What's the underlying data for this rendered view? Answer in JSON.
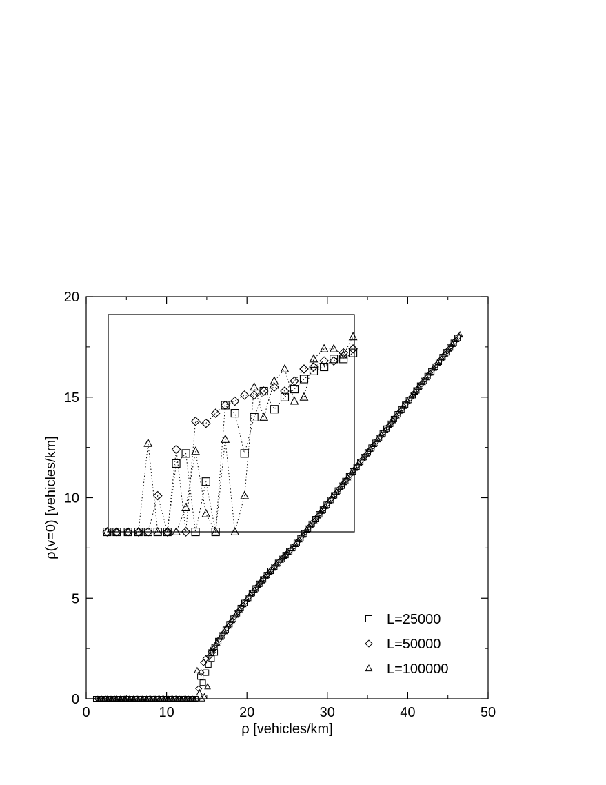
{
  "chart_data": {
    "type": "scatter",
    "xlabel": "ρ [vehicles/km]",
    "ylabel": "ρ(v=0) [vehicles/km]",
    "xlim": [
      0,
      50
    ],
    "ylim": [
      0,
      20
    ],
    "xticks": [
      0,
      10,
      20,
      30,
      40,
      50
    ],
    "yticks": [
      0,
      5,
      10,
      15,
      20
    ],
    "xtick_labels": [
      "0",
      "10",
      "20",
      "30",
      "40",
      "50"
    ],
    "ytick_labels": [
      "0",
      "5",
      "10",
      "15",
      "20"
    ],
    "grid": false,
    "legend_position": "bottom-right",
    "main": {
      "series": [
        {
          "name": "L=25000",
          "marker": "square"
        },
        {
          "name": "L=50000",
          "marker": "diamond"
        },
        {
          "name": "L=100000",
          "marker": "triangle"
        }
      ],
      "flat_region": {
        "x_start": 1.2,
        "x_end": 13.8,
        "y": 0.0
      },
      "transition_points": [
        {
          "series": "L=25000",
          "points": [
            [
              14.2,
              1.1
            ],
            [
              14.5,
              0.8
            ],
            [
              14.9,
              1.3
            ],
            [
              15.2,
              1.7
            ],
            [
              15.6,
              2.0
            ],
            [
              16.0,
              2.3
            ]
          ]
        },
        {
          "series": "L=50000",
          "points": [
            [
              14.0,
              0.5
            ],
            [
              14.3,
              1.3
            ],
            [
              14.6,
              1.8
            ],
            [
              14.9,
              2.0
            ],
            [
              15.3,
              2.1
            ],
            [
              15.7,
              2.3
            ]
          ]
        },
        {
          "series": "L=100000",
          "points": [
            [
              13.8,
              1.4
            ],
            [
              14.1,
              0.3
            ],
            [
              14.4,
              0.0
            ],
            [
              14.7,
              0.1
            ],
            [
              15.1,
              0.6
            ],
            [
              15.5,
              2.4
            ]
          ]
        }
      ],
      "linear_branch": {
        "x_start": 15.5,
        "y_start": 2.3,
        "x_end": 46.5,
        "y_end": 18.1
      }
    },
    "inset": {
      "series": [
        {
          "name": "L=25000",
          "marker": "square",
          "x": [
            2.6,
            3.8,
            5.2,
            6.5,
            7.7,
            8.9,
            10.1,
            11.2,
            12.4,
            13.6,
            14.9,
            16.1,
            17.3,
            18.5,
            19.7,
            20.9,
            22.1,
            23.4,
            24.7,
            25.9,
            27.1,
            28.3,
            29.6,
            30.8,
            32.0,
            33.2
          ],
          "y": [
            8.3,
            8.3,
            8.3,
            8.3,
            8.3,
            8.3,
            8.3,
            11.7,
            12.2,
            8.3,
            10.8,
            8.3,
            14.6,
            14.2,
            12.2,
            14.0,
            15.3,
            14.4,
            15.0,
            15.4,
            15.9,
            16.3,
            16.5,
            16.9,
            16.9,
            17.2
          ]
        },
        {
          "name": "L=50000",
          "marker": "diamond",
          "x": [
            2.6,
            3.8,
            5.2,
            6.5,
            7.7,
            8.9,
            10.1,
            11.2,
            12.4,
            13.6,
            14.9,
            16.1,
            17.3,
            18.5,
            19.7,
            20.9,
            22.1,
            23.4,
            24.7,
            25.9,
            27.1,
            28.3,
            29.6,
            30.8,
            32.0,
            33.2
          ],
          "y": [
            8.3,
            8.3,
            8.3,
            8.3,
            8.3,
            10.1,
            8.3,
            12.4,
            8.3,
            13.8,
            13.7,
            14.2,
            14.6,
            14.8,
            15.1,
            15.1,
            15.3,
            15.5,
            15.3,
            15.8,
            16.4,
            16.5,
            16.8,
            16.8,
            17.2,
            17.4
          ]
        },
        {
          "name": "L=100000",
          "marker": "triangle",
          "x": [
            2.6,
            3.8,
            5.2,
            6.5,
            7.7,
            8.9,
            10.1,
            11.2,
            12.4,
            13.6,
            14.9,
            16.1,
            17.3,
            18.5,
            19.7,
            20.9,
            22.1,
            23.4,
            24.7,
            25.9,
            27.1,
            28.3,
            29.6,
            30.8,
            32.0,
            33.2
          ],
          "y": [
            8.3,
            8.3,
            8.3,
            8.3,
            12.7,
            8.3,
            8.3,
            8.3,
            9.5,
            12.3,
            9.2,
            8.3,
            12.9,
            8.3,
            10.1,
            15.5,
            14.0,
            15.8,
            16.4,
            14.8,
            15.0,
            16.9,
            17.4,
            17.4,
            17.1,
            18.0
          ]
        }
      ]
    }
  }
}
